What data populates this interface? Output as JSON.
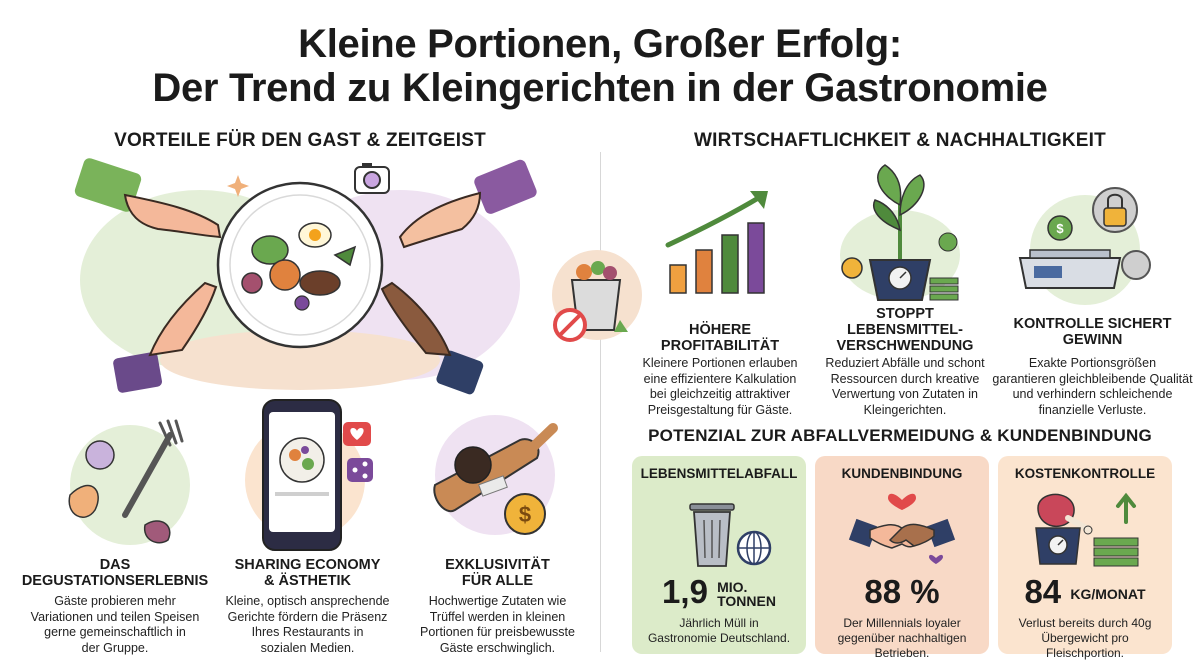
{
  "title": {
    "line1": "Kleine Portionen, Großer Erfolg:",
    "line2": "Der Trend zu Kleingerichten in der Gastronomie"
  },
  "left_section": {
    "heading": "VORTEILE FÜR DEN GAST & ZEITGEIST",
    "features": [
      {
        "title_l1": "DAS",
        "title_l2": "DEGUSTATIONSERLEBNIS",
        "desc": [
          "Gäste probieren mehr",
          "Variationen und teilen Speisen",
          "gerne gemeinschaftlich in",
          "der Gruppe."
        ]
      },
      {
        "title_l1": "SHARING ECONOMY",
        "title_l2": "& ÄSTHETIK",
        "desc": [
          "Kleine, optisch ansprechende",
          "Gerichte fördern die Präsenz",
          "Ihres Restaurants in",
          "sozialen Medien."
        ]
      },
      {
        "title_l1": "EXKLUSIVITÄT",
        "title_l2": "FÜR ALLE",
        "desc": [
          "Hochwertige Zutaten wie",
          "Trüffel werden in kleinen",
          "Portionen für preisbewusste",
          "Gäste erschwinglich."
        ]
      }
    ]
  },
  "right_section": {
    "heading": "WIRTSCHAFTLICHKEIT & NACHHALTIGKEIT",
    "features": [
      {
        "title_l1": "HÖHERE",
        "title_l2": "PROFITABILITÄT",
        "desc": [
          "Kleinere Portionen erlauben",
          "eine effizientere Kalkulation",
          "bei gleichzeitig attraktiver",
          "Preisgestaltung für Gäste."
        ]
      },
      {
        "title_l1": "STOPPT",
        "title_l2": "LEBENSMITTEL-",
        "title_l3": "VERSCHWENDUNG",
        "desc": [
          "Reduziert Abfälle und schont",
          "Ressourcen durch kreative",
          "Verwertung von Zutaten in",
          "Kleingerichten."
        ]
      },
      {
        "title_l1": "KONTROLLE SICHERT",
        "title_l2": "GEWINN",
        "desc": [
          "Exakte Portionsgrößen",
          "garantieren gleichbleibende Qualität",
          "und verhindern schleichende",
          "finanzielle Verluste."
        ]
      }
    ]
  },
  "potential": {
    "heading": "POTENZIAL ZUR ABFALLVERMEIDUNG & KUNDENBINDUNG",
    "cards": [
      {
        "label": "LEBENSMITTELABFALL",
        "value": "1,9",
        "unit_l1": "MIO.",
        "unit_l2": "TONNEN",
        "desc": [
          "Jährlich Müll in",
          "Gastronomie Deutschland."
        ],
        "bg": "#dcebc9"
      },
      {
        "label": "KUNDENBINDUNG",
        "value": "88 %",
        "desc": [
          "Der Millennials loyaler",
          "gegenüber nachhaltigen",
          "Betrieben."
        ],
        "bg": "#f8d9c6"
      },
      {
        "label": "KOSTENKONTROLLE",
        "value": "84",
        "unit": "KG/MONAT",
        "desc": [
          "Verlust bereits durch 40g",
          "Übergewicht pro",
          "Fleischportion."
        ],
        "bg": "#fbe4cf"
      }
    ]
  },
  "colors": {
    "green_card": "#dcebc9",
    "peach_card": "#f8d9c6",
    "orange_card": "#fbe4cf",
    "accent_green": "#4f8a3c",
    "accent_purple": "#7b4a9a"
  }
}
